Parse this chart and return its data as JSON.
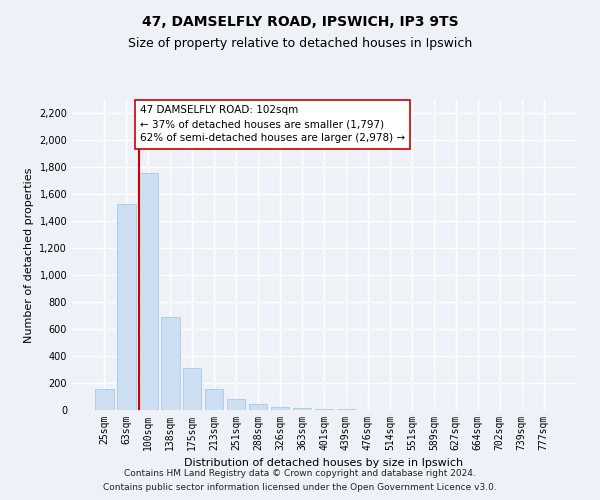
{
  "title1": "47, DAMSELFLY ROAD, IPSWICH, IP3 9TS",
  "title2": "Size of property relative to detached houses in Ipswich",
  "xlabel": "Distribution of detached houses by size in Ipswich",
  "ylabel": "Number of detached properties",
  "categories": [
    "25sqm",
    "63sqm",
    "100sqm",
    "138sqm",
    "175sqm",
    "213sqm",
    "251sqm",
    "288sqm",
    "326sqm",
    "363sqm",
    "401sqm",
    "439sqm",
    "476sqm",
    "514sqm",
    "551sqm",
    "589sqm",
    "627sqm",
    "664sqm",
    "702sqm",
    "739sqm",
    "777sqm"
  ],
  "values": [
    155,
    1530,
    1760,
    690,
    310,
    155,
    80,
    43,
    25,
    18,
    10,
    5,
    3,
    0,
    0,
    0,
    0,
    0,
    0,
    0,
    0
  ],
  "bar_color": "#ccdff2",
  "bar_edge_color": "#aac8e8",
  "property_line_color": "#cc0000",
  "annotation_text": "47 DAMSELFLY ROAD: 102sqm\n← 37% of detached houses are smaller (1,797)\n62% of semi-detached houses are larger (2,978) →",
  "annotation_box_facecolor": "#ffffff",
  "annotation_box_edgecolor": "#cc0000",
  "ylim": [
    0,
    2300
  ],
  "yticks": [
    0,
    200,
    400,
    600,
    800,
    1000,
    1200,
    1400,
    1600,
    1800,
    2000,
    2200
  ],
  "footer_line1": "Contains HM Land Registry data © Crown copyright and database right 2024.",
  "footer_line2": "Contains public sector information licensed under the Open Government Licence v3.0.",
  "bg_color": "#eef2f8",
  "grid_color": "#ffffff",
  "title1_fontsize": 10,
  "title2_fontsize": 9,
  "axis_fontsize": 8,
  "tick_fontsize": 7,
  "annot_fontsize": 7.5,
  "footer_fontsize": 6.5
}
